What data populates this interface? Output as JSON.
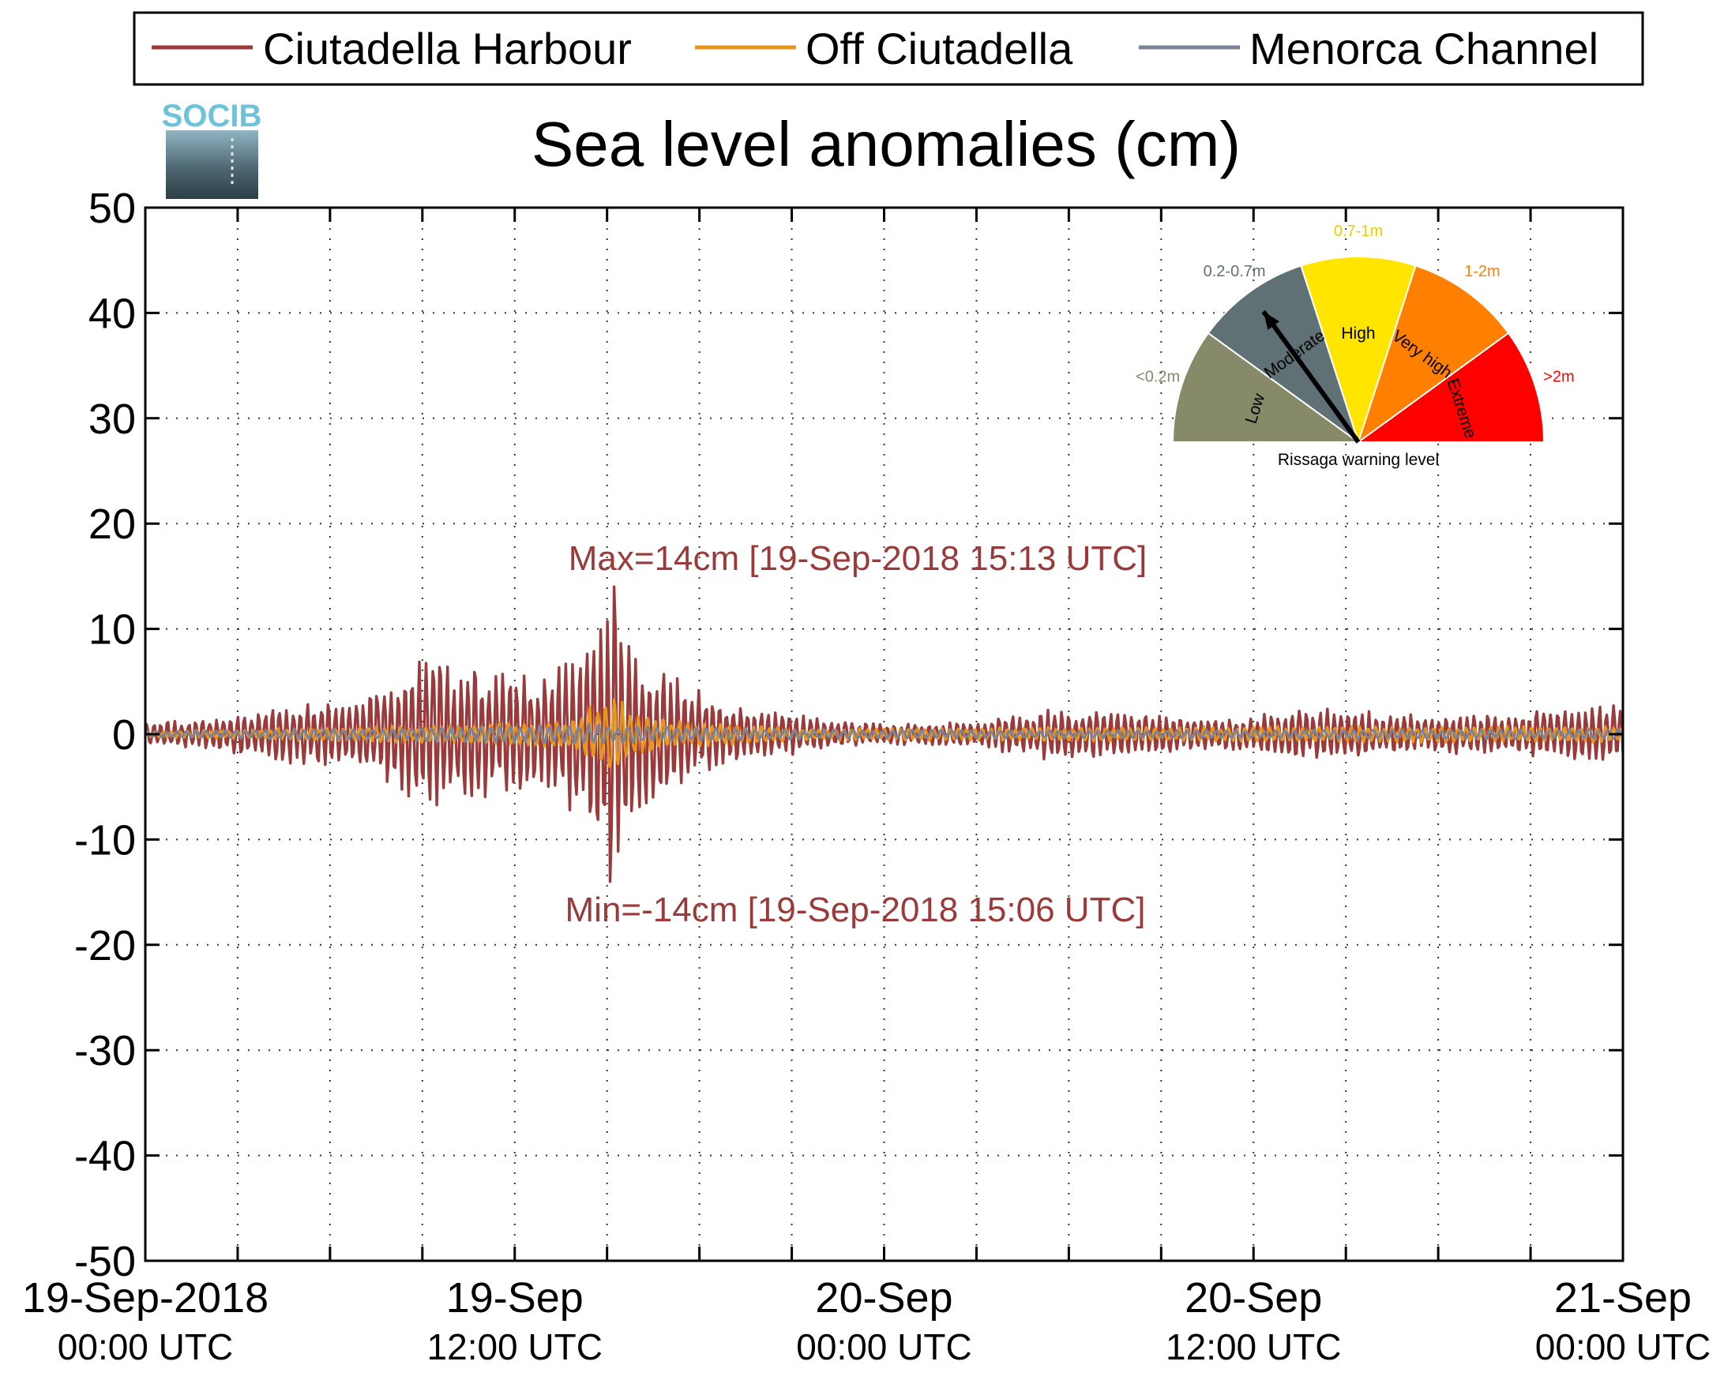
{
  "title": "Sea level anomalies (cm)",
  "logo_text": "SOCIB",
  "legend": [
    {
      "label": "Ciutadella Harbour",
      "color": "#9b3a3a"
    },
    {
      "label": "Off Ciutadella",
      "color": "#e8951e"
    },
    {
      "label": "Menorca Channel",
      "color": "#7b8496"
    }
  ],
  "annotations": {
    "max": "Max=14cm [19-Sep-2018 15:13 UTC]",
    "min": "Min=-14cm [19-Sep-2018 15:06 UTC]",
    "color": "#9b3a3a"
  },
  "gauge": {
    "caption": "Rissaga warning level",
    "pointer_level": "Moderate",
    "levels": [
      {
        "name": "Low",
        "range": "<0.2m",
        "color": "#868a68",
        "range_color": "#868a68"
      },
      {
        "name": "Moderate",
        "range": "0.2-0.7m",
        "color": "#5f7174",
        "range_color": "#5f7174"
      },
      {
        "name": "High",
        "range": "0.7-1m",
        "color": "#ffe500",
        "range_color": "#e8d000"
      },
      {
        "name": "Very high",
        "range": "1-2m",
        "color": "#ff8000",
        "range_color": "#ff8000"
      },
      {
        "name": "Extreme",
        "range": ">2m",
        "color": "#ff0000",
        "range_color": "#ff0000"
      }
    ]
  },
  "chart_data": {
    "type": "line",
    "title": "Sea level anomalies (cm)",
    "xlabel": "",
    "ylabel": "",
    "ylim": [
      -50,
      50
    ],
    "yticks": [
      -50,
      -40,
      -30,
      -20,
      -10,
      0,
      10,
      20,
      30,
      40,
      50
    ],
    "xlim": [
      "2018-09-19T00:00",
      "2018-09-21T00:00"
    ],
    "xticks": [
      {
        "time": "2018-09-19T00:00",
        "label1": "19-Sep-2018",
        "label2": "00:00 UTC"
      },
      {
        "time": "2018-09-19T12:00",
        "label1": "19-Sep",
        "label2": "12:00 UTC"
      },
      {
        "time": "2018-09-20T00:00",
        "label1": "20-Sep",
        "label2": "00:00 UTC"
      },
      {
        "time": "2018-09-20T12:00",
        "label1": "20-Sep",
        "label2": "12:00 UTC"
      },
      {
        "time": "2018-09-21T00:00",
        "label1": "21-Sep",
        "label2": "00:00 UTC"
      }
    ],
    "grid": true,
    "legend_position": "top",
    "series": [
      {
        "name": "Ciutadella Harbour",
        "color": "#9b3a3a",
        "x": [
          "2018-09-19T00:00",
          "2018-09-19T02:00",
          "2018-09-19T04:00",
          "2018-09-19T05:30",
          "2018-09-19T07:00",
          "2018-09-19T08:30",
          "2018-09-19T10:00",
          "2018-09-19T11:30",
          "2018-09-19T13:00",
          "2018-09-19T14:00",
          "2018-09-19T15:06",
          "2018-09-19T15:13",
          "2018-09-19T16:00",
          "2018-09-19T17:00",
          "2018-09-19T18:30",
          "2018-09-19T20:00",
          "2018-09-19T22:00",
          "2018-09-20T00:00",
          "2018-09-20T03:00",
          "2018-09-20T05:00",
          "2018-09-20T08:00",
          "2018-09-20T11:00",
          "2018-09-20T14:00",
          "2018-09-20T17:00",
          "2018-09-20T20:00",
          "2018-09-20T22:00",
          "2018-09-21T00:00"
        ],
        "amplitude": [
          1,
          1.5,
          2.5,
          3.5,
          3,
          7,
          7.5,
          6.5,
          5.5,
          8,
          14,
          14,
          8,
          6,
          3.5,
          2.5,
          1.5,
          1,
          1.2,
          2.5,
          2,
          1.5,
          2.5,
          2,
          2,
          2.5,
          3
        ],
        "max": 14,
        "min": -14
      },
      {
        "name": "Off Ciutadella",
        "color": "#e8951e",
        "x": [
          "2018-09-19T00:00",
          "2018-09-19T08:00",
          "2018-09-19T11:00",
          "2018-09-19T14:00",
          "2018-09-19T15:10",
          "2018-09-19T16:00",
          "2018-09-19T18:00",
          "2018-09-19T22:00",
          "2018-09-20T06:00",
          "2018-09-20T14:00",
          "2018-09-21T00:00"
        ],
        "amplitude": [
          0.3,
          0.8,
          1,
          1.5,
          5,
          2,
          1.2,
          0.6,
          0.7,
          0.8,
          0.8
        ]
      },
      {
        "name": "Menorca Channel",
        "color": "#7b8496",
        "x": [
          "2018-09-19T00:00",
          "2018-09-19T08:00",
          "2018-09-19T14:00",
          "2018-09-19T16:00",
          "2018-09-19T20:00",
          "2018-09-20T06:00",
          "2018-09-21T00:00"
        ],
        "amplitude": [
          0.3,
          0.6,
          1,
          0.9,
          0.5,
          0.4,
          0.5
        ]
      }
    ]
  }
}
